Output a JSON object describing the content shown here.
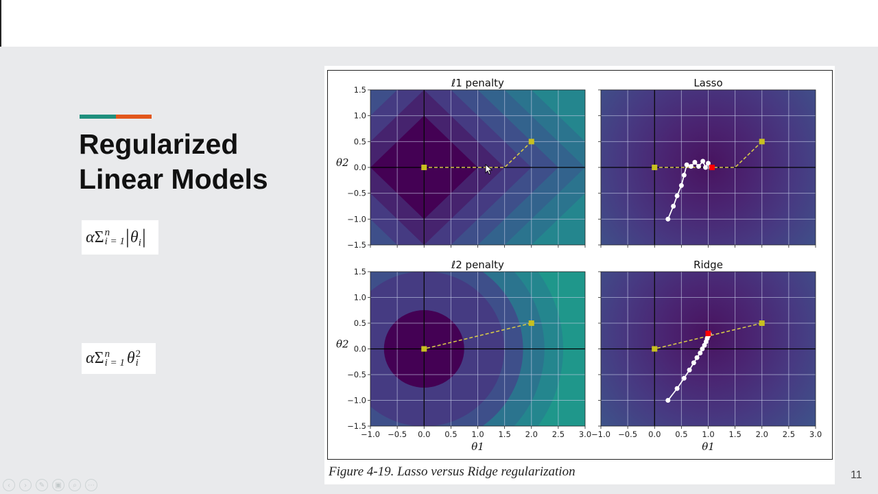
{
  "slide": {
    "title_line1": "Regularized",
    "title_line2": "Linear Models",
    "accent_colors": {
      "teal": "#1f8f7d",
      "orange": "#e2571c"
    },
    "formula_l1": {
      "alpha": "α",
      "sigma": "Σ",
      "sub": "i = 1",
      "sup": "n",
      "term": "θ",
      "term_sub": "i",
      "bar": "|"
    },
    "formula_l2": {
      "alpha": "α",
      "sigma": "Σ",
      "sub": "i = 1",
      "sup": "n",
      "term": "θ",
      "term_sub": "i",
      "power": "2"
    },
    "figure_caption": "Figure 4-19. Lasso versus Ridge regularization",
    "page_number": "11"
  },
  "toolbar": {
    "buttons": [
      {
        "name": "previous-slide-button",
        "glyph": "‹"
      },
      {
        "name": "next-slide-button",
        "glyph": "›"
      },
      {
        "name": "pen-button",
        "glyph": "✎"
      },
      {
        "name": "pointer-button",
        "glyph": "▣"
      },
      {
        "name": "zoom-button",
        "glyph": "⌕"
      },
      {
        "name": "menu-button",
        "glyph": "⋯"
      }
    ]
  },
  "chart_data": [
    {
      "type": "heatmap",
      "title": "ℓ1 penalty",
      "xlabel": "",
      "ylabel": "θ2",
      "xlim": [
        -1.0,
        3.0
      ],
      "ylim": [
        -1.5,
        1.5
      ],
      "xticks": [
        "−1.0",
        "−0.5",
        "0.0",
        "0.5",
        "1.0",
        "1.5",
        "2.0",
        "2.5",
        "3.0"
      ],
      "yticks": [
        "1.5",
        "1.0",
        "0.5",
        "0.0",
        "−0.5",
        "−1.0",
        "−1.5"
      ],
      "grid": true,
      "contour": "diamond (|θ1|+|θ2|)",
      "path": {
        "style": "yellow dashed",
        "points": [
          [
            2.0,
            0.5
          ],
          [
            1.5,
            0.0
          ],
          [
            0.0,
            0.0
          ]
        ]
      },
      "markers": [
        {
          "x": 0.0,
          "y": 0.0,
          "color": "#c8c020"
        },
        {
          "x": 2.0,
          "y": 0.5,
          "color": "#c8c020"
        }
      ]
    },
    {
      "type": "heatmap",
      "title": "Lasso",
      "xlabel": "",
      "ylabel": "",
      "xlim": [
        -1.0,
        3.0
      ],
      "ylim": [
        -1.5,
        1.5
      ],
      "grid": true,
      "contour": "elliptical loss centered near (1.0, 0.1)",
      "path": {
        "style": "yellow dashed",
        "points": [
          [
            2.0,
            0.5
          ],
          [
            1.5,
            0.0
          ],
          [
            0.0,
            0.0
          ]
        ]
      },
      "gd_path": [
        [
          0.25,
          -1.0
        ],
        [
          0.35,
          -0.75
        ],
        [
          0.42,
          -0.55
        ],
        [
          0.5,
          -0.35
        ],
        [
          0.55,
          -0.15
        ],
        [
          0.6,
          0.05
        ],
        [
          0.68,
          0.02
        ],
        [
          0.75,
          0.1
        ],
        [
          0.82,
          0.02
        ],
        [
          0.9,
          0.12
        ],
        [
          0.95,
          0.0
        ],
        [
          1.0,
          0.08
        ],
        [
          1.05,
          0.0
        ]
      ],
      "markers": [
        {
          "x": 0.0,
          "y": 0.0,
          "color": "#c8c020"
        },
        {
          "x": 2.0,
          "y": 0.5,
          "color": "#c8c020"
        },
        {
          "x": 1.07,
          "y": 0.0,
          "color": "#ff0000"
        }
      ]
    },
    {
      "type": "heatmap",
      "title": "ℓ2 penalty",
      "xlabel": "θ1",
      "ylabel": "θ2",
      "xlim": [
        -1.0,
        3.0
      ],
      "ylim": [
        -1.5,
        1.5
      ],
      "xticks": [
        "−1.0",
        "−0.5",
        "0.0",
        "0.5",
        "1.0",
        "1.5",
        "2.0",
        "2.5",
        "3.0"
      ],
      "yticks": [
        "1.5",
        "1.0",
        "0.5",
        "0.0",
        "−0.5",
        "−1.0",
        "−1.5"
      ],
      "grid": true,
      "contour": "circles (θ1²+θ2²)",
      "path": {
        "style": "yellow dashed",
        "points": [
          [
            2.0,
            0.5
          ],
          [
            0.0,
            0.0
          ]
        ]
      },
      "markers": [
        {
          "x": 0.0,
          "y": 0.0,
          "color": "#c8c020"
        },
        {
          "x": 2.0,
          "y": 0.5,
          "color": "#c8c020"
        }
      ]
    },
    {
      "type": "heatmap",
      "title": "Ridge",
      "xlabel": "θ1",
      "ylabel": "",
      "xlim": [
        -1.0,
        3.0
      ],
      "ylim": [
        -1.5,
        1.5
      ],
      "xticks": [
        "−1.0",
        "−0.5",
        "0.0",
        "0.5",
        "1.0",
        "1.5",
        "2.0",
        "2.5",
        "3.0"
      ],
      "grid": true,
      "contour": "elliptical loss centered near (1.0, 0.3)",
      "path": {
        "style": "yellow dashed",
        "points": [
          [
            2.0,
            0.5
          ],
          [
            0.0,
            0.0
          ]
        ]
      },
      "gd_path": [
        [
          0.25,
          -1.0
        ],
        [
          0.42,
          -0.77
        ],
        [
          0.55,
          -0.57
        ],
        [
          0.65,
          -0.41
        ],
        [
          0.73,
          -0.27
        ],
        [
          0.79,
          -0.17
        ],
        [
          0.85,
          -0.08
        ],
        [
          0.89,
          0.0
        ],
        [
          0.93,
          0.07
        ],
        [
          0.96,
          0.14
        ],
        [
          0.98,
          0.2
        ],
        [
          1.0,
          0.25
        ],
        [
          1.02,
          0.29
        ]
      ],
      "markers": [
        {
          "x": 0.0,
          "y": 0.0,
          "color": "#c8c020"
        },
        {
          "x": 2.0,
          "y": 0.5,
          "color": "#c8c020"
        },
        {
          "x": 1.0,
          "y": 0.3,
          "color": "#ff0000"
        }
      ]
    }
  ]
}
